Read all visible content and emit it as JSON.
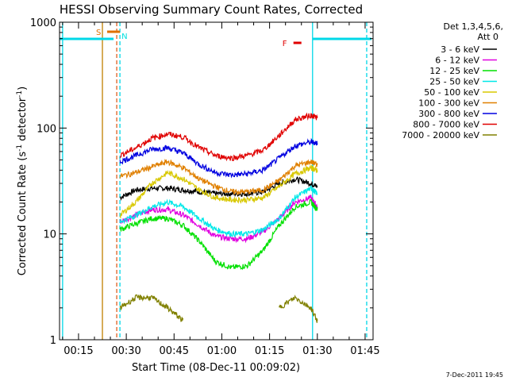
{
  "chart_data": {
    "type": "line",
    "title": "HESSI Observing Summary Count Rates, Corrected",
    "xlabel": "Start Time (08-Dec-11 00:09:02)",
    "ylabel": "Corrected Count Rate (s",
    "ylabel_sup1": "-1",
    "ylabel_mid": " detector",
    "ylabel_sup2": "-1",
    "ylabel_end": ")",
    "yscale": "log",
    "ylim": [
      1,
      1000
    ],
    "xlim": [
      "00:09:02",
      "01:47:30"
    ],
    "x_ticks": [
      "00:15",
      "00:30",
      "00:45",
      "01:00",
      "01:15",
      "01:30",
      "01:45"
    ],
    "y_ticks": [
      "1",
      "10",
      "100",
      "1000"
    ],
    "legend_title": "Det 1,3,4,5,6,",
    "legend_subtitle": "Att 0",
    "legend_position": "top-right",
    "footer_date": "7-Dec-2011 19:45",
    "flags": [
      {
        "label": "S",
        "color": "#e07000",
        "start": "00:22:30",
        "end": "00:26:00"
      },
      {
        "label": "N",
        "color": "#00e0e0",
        "start": "00:27:00",
        "end": "00:27:00"
      },
      {
        "label": "F",
        "color": "#e00000",
        "start": "01:21:00",
        "end": "01:23:00"
      }
    ],
    "markers": [
      {
        "time": "00:10:00",
        "color": "#00d8e8",
        "style": "solid"
      },
      {
        "time": "00:22:30",
        "color": "#c08000",
        "style": "solid"
      },
      {
        "time": "00:27:00",
        "color": "#e06020",
        "style": "dashed"
      },
      {
        "time": "00:28:00",
        "color": "#00d8e8",
        "style": "dashed"
      },
      {
        "time": "01:28:30",
        "color": "#00d8e8",
        "style": "solid"
      },
      {
        "time": "01:45:30",
        "color": "#00d8e8",
        "style": "dashed"
      }
    ],
    "x": [
      "00:28",
      "00:33",
      "00:38",
      "00:43",
      "00:48",
      "00:53",
      "00:58",
      "01:03",
      "01:08",
      "01:13",
      "01:18",
      "01:23",
      "01:28",
      "01:30"
    ],
    "series": [
      {
        "name": "3 - 6 keV",
        "color": "#000000",
        "values": [
          22,
          26,
          27,
          27,
          26,
          25,
          24,
          24,
          24,
          25,
          30,
          33,
          30,
          28
        ]
      },
      {
        "name": "6 - 12 keV",
        "color": "#e000e0",
        "values": [
          13,
          15,
          17,
          17,
          15,
          12,
          9.5,
          9,
          9,
          10.5,
          14,
          20,
          22,
          18
        ]
      },
      {
        "name": "12 - 25 keV",
        "color": "#00e000",
        "values": [
          11,
          12.5,
          14,
          14,
          12,
          8.5,
          5.5,
          4.8,
          5.0,
          7,
          12,
          18,
          20,
          17
        ]
      },
      {
        "name": "25 - 50 keV",
        "color": "#00e8e8",
        "values": [
          13,
          15,
          18,
          20,
          18,
          14,
          11,
          10,
          10,
          11,
          14,
          22,
          27,
          24
        ]
      },
      {
        "name": "50 - 100 keV",
        "color": "#d8c800",
        "values": [
          15,
          20,
          30,
          38,
          33,
          26,
          22,
          21,
          21,
          22,
          28,
          37,
          42,
          40
        ]
      },
      {
        "name": "100 - 300 keV",
        "color": "#e08000",
        "values": [
          35,
          38,
          43,
          48,
          42,
          33,
          28,
          25,
          25,
          26,
          32,
          44,
          48,
          45
        ]
      },
      {
        "name": "300 - 800 keV",
        "color": "#0000e0",
        "values": [
          48,
          55,
          63,
          65,
          58,
          45,
          38,
          36,
          37,
          40,
          52,
          68,
          74,
          72
        ]
      },
      {
        "name": "800 - 7000 keV",
        "color": "#e00000",
        "values": [
          55,
          65,
          80,
          88,
          82,
          65,
          55,
          52,
          55,
          62,
          85,
          120,
          132,
          125
        ]
      },
      {
        "name": "7000 - 20000 keV",
        "color": "#808000",
        "values": [
          2,
          2.5,
          2.5,
          2,
          1.5,
          null,
          null,
          null,
          null,
          null,
          2,
          2.5,
          2,
          1.5
        ]
      }
    ]
  }
}
